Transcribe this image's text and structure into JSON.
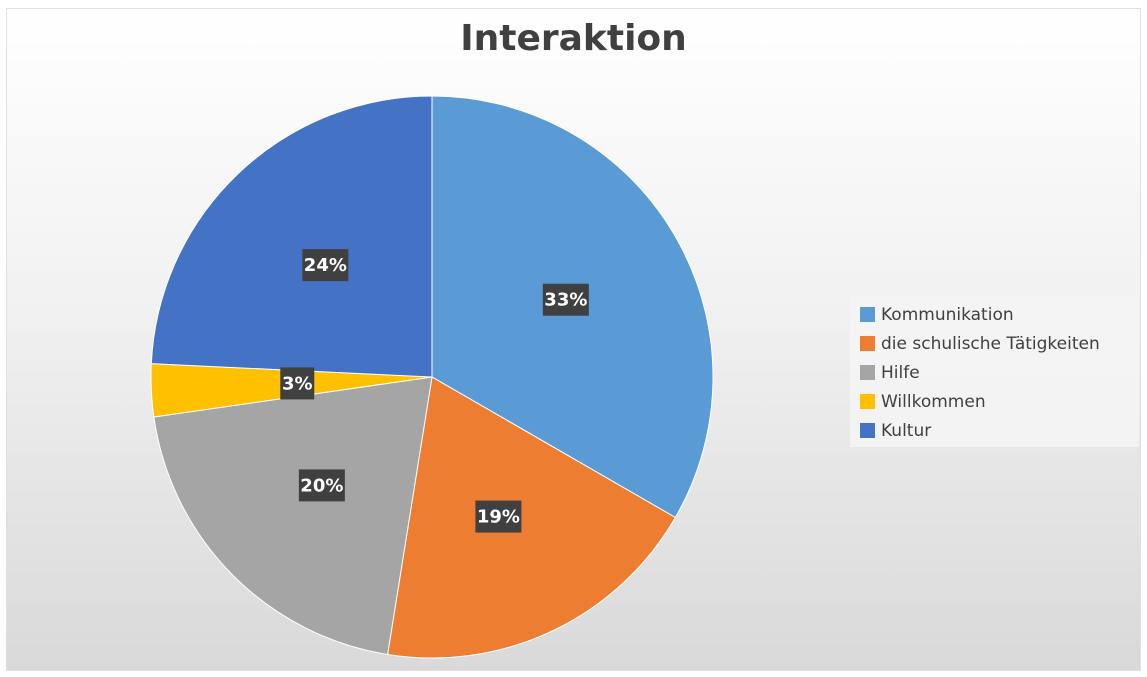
{
  "chart_data": {
    "type": "pie",
    "title": "Interaktion",
    "categories": [
      "Kommunikation",
      "die schulische Tätigkeiten",
      "Hilfe",
      "Willkommen",
      "Kultur"
    ],
    "values": [
      33,
      19,
      20,
      3,
      24
    ],
    "data_labels": [
      "33%",
      "19%",
      "20%",
      "3%",
      "24%"
    ],
    "colors": [
      "#5B9BD5",
      "#ED7D31",
      "#A5A5A5",
      "#FFC000",
      "#4472C4"
    ],
    "legend_position": "right",
    "start_angle": "12 o'clock, clockwise"
  }
}
